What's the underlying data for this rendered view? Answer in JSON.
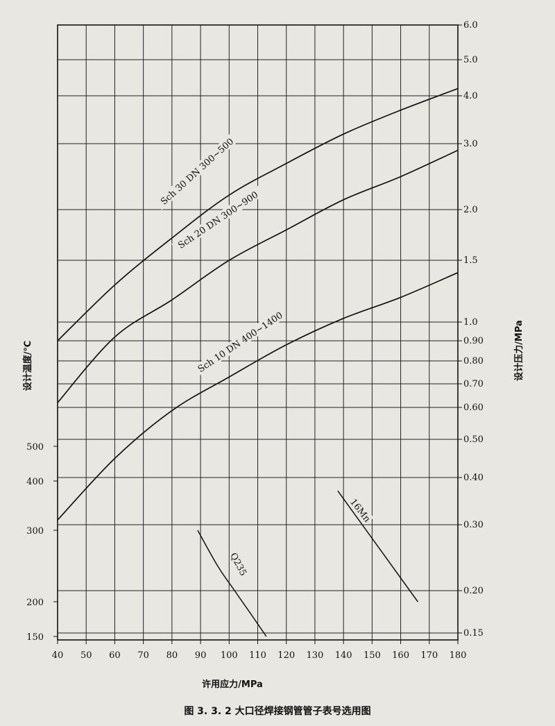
{
  "caption": "图 3. 3. 2   大口径焊接钢管管子表号选用图",
  "chart_data": {
    "type": "line",
    "xlabel": "许用应力/MPa",
    "ylabel_left": "设计温度/℃",
    "ylabel_right": "设计压力/MPa",
    "x_ticks": [
      40,
      50,
      60,
      70,
      80,
      90,
      100,
      110,
      120,
      130,
      140,
      150,
      160,
      170,
      180
    ],
    "xlim": [
      40,
      180
    ],
    "left_ticks": [
      150,
      200,
      300,
      400,
      500
    ],
    "right_ticks": [
      {
        "label": "6.0",
        "value": 6.0
      },
      {
        "label": "5.0",
        "value": 5.0
      },
      {
        "label": "4.0",
        "value": 4.0
      },
      {
        "label": "3.0",
        "value": 3.0
      },
      {
        "label": "2.0",
        "value": 2.0
      },
      {
        "label": "1.5",
        "value": 1.5
      },
      {
        "label": "1.0",
        "value": 1.0
      },
      {
        "label": "0.90",
        "value": 0.9
      },
      {
        "label": "0.80",
        "value": 0.8
      },
      {
        "label": "0.70",
        "value": 0.7
      },
      {
        "label": "0.60",
        "value": 0.6
      },
      {
        "label": "0.50",
        "value": 0.5
      },
      {
        "label": "0.40",
        "value": 0.4
      },
      {
        "label": "0.30",
        "value": 0.3
      },
      {
        "label": "0.20",
        "value": 0.2
      },
      {
        "label": "0.15",
        "value": 0.15
      }
    ],
    "series": [
      {
        "name": "Sch 30 DN 300~500",
        "x": [
          40,
          60,
          80,
          100,
          120,
          140,
          160,
          180
        ],
        "y": [
          0.9,
          1.3,
          1.72,
          2.22,
          2.7,
          3.2,
          3.7,
          4.2
        ]
      },
      {
        "name": "Sch 20 DN 300~900",
        "x": [
          40,
          60,
          80,
          100,
          120,
          140,
          160,
          180
        ],
        "y": [
          0.62,
          0.92,
          1.18,
          1.5,
          1.8,
          2.15,
          2.5,
          2.9
        ]
      },
      {
        "name": "Sch 10 DN 400~1400",
        "x": [
          40,
          60,
          80,
          100,
          120,
          140,
          160,
          180
        ],
        "y": [
          0.31,
          0.45,
          0.59,
          0.73,
          0.88,
          1.03,
          1.2,
          1.4
        ]
      }
    ],
    "materials": [
      {
        "name": "Q235",
        "points": [
          [
            89,
            300
          ],
          [
            96,
            250
          ],
          [
            102,
            215
          ],
          [
            108,
            180
          ],
          [
            113,
            150
          ]
        ]
      },
      {
        "name": "16Mn",
        "points": [
          [
            138,
            380
          ],
          [
            146,
            320
          ],
          [
            153,
            270
          ],
          [
            160,
            230
          ],
          [
            166,
            200
          ]
        ]
      }
    ]
  }
}
